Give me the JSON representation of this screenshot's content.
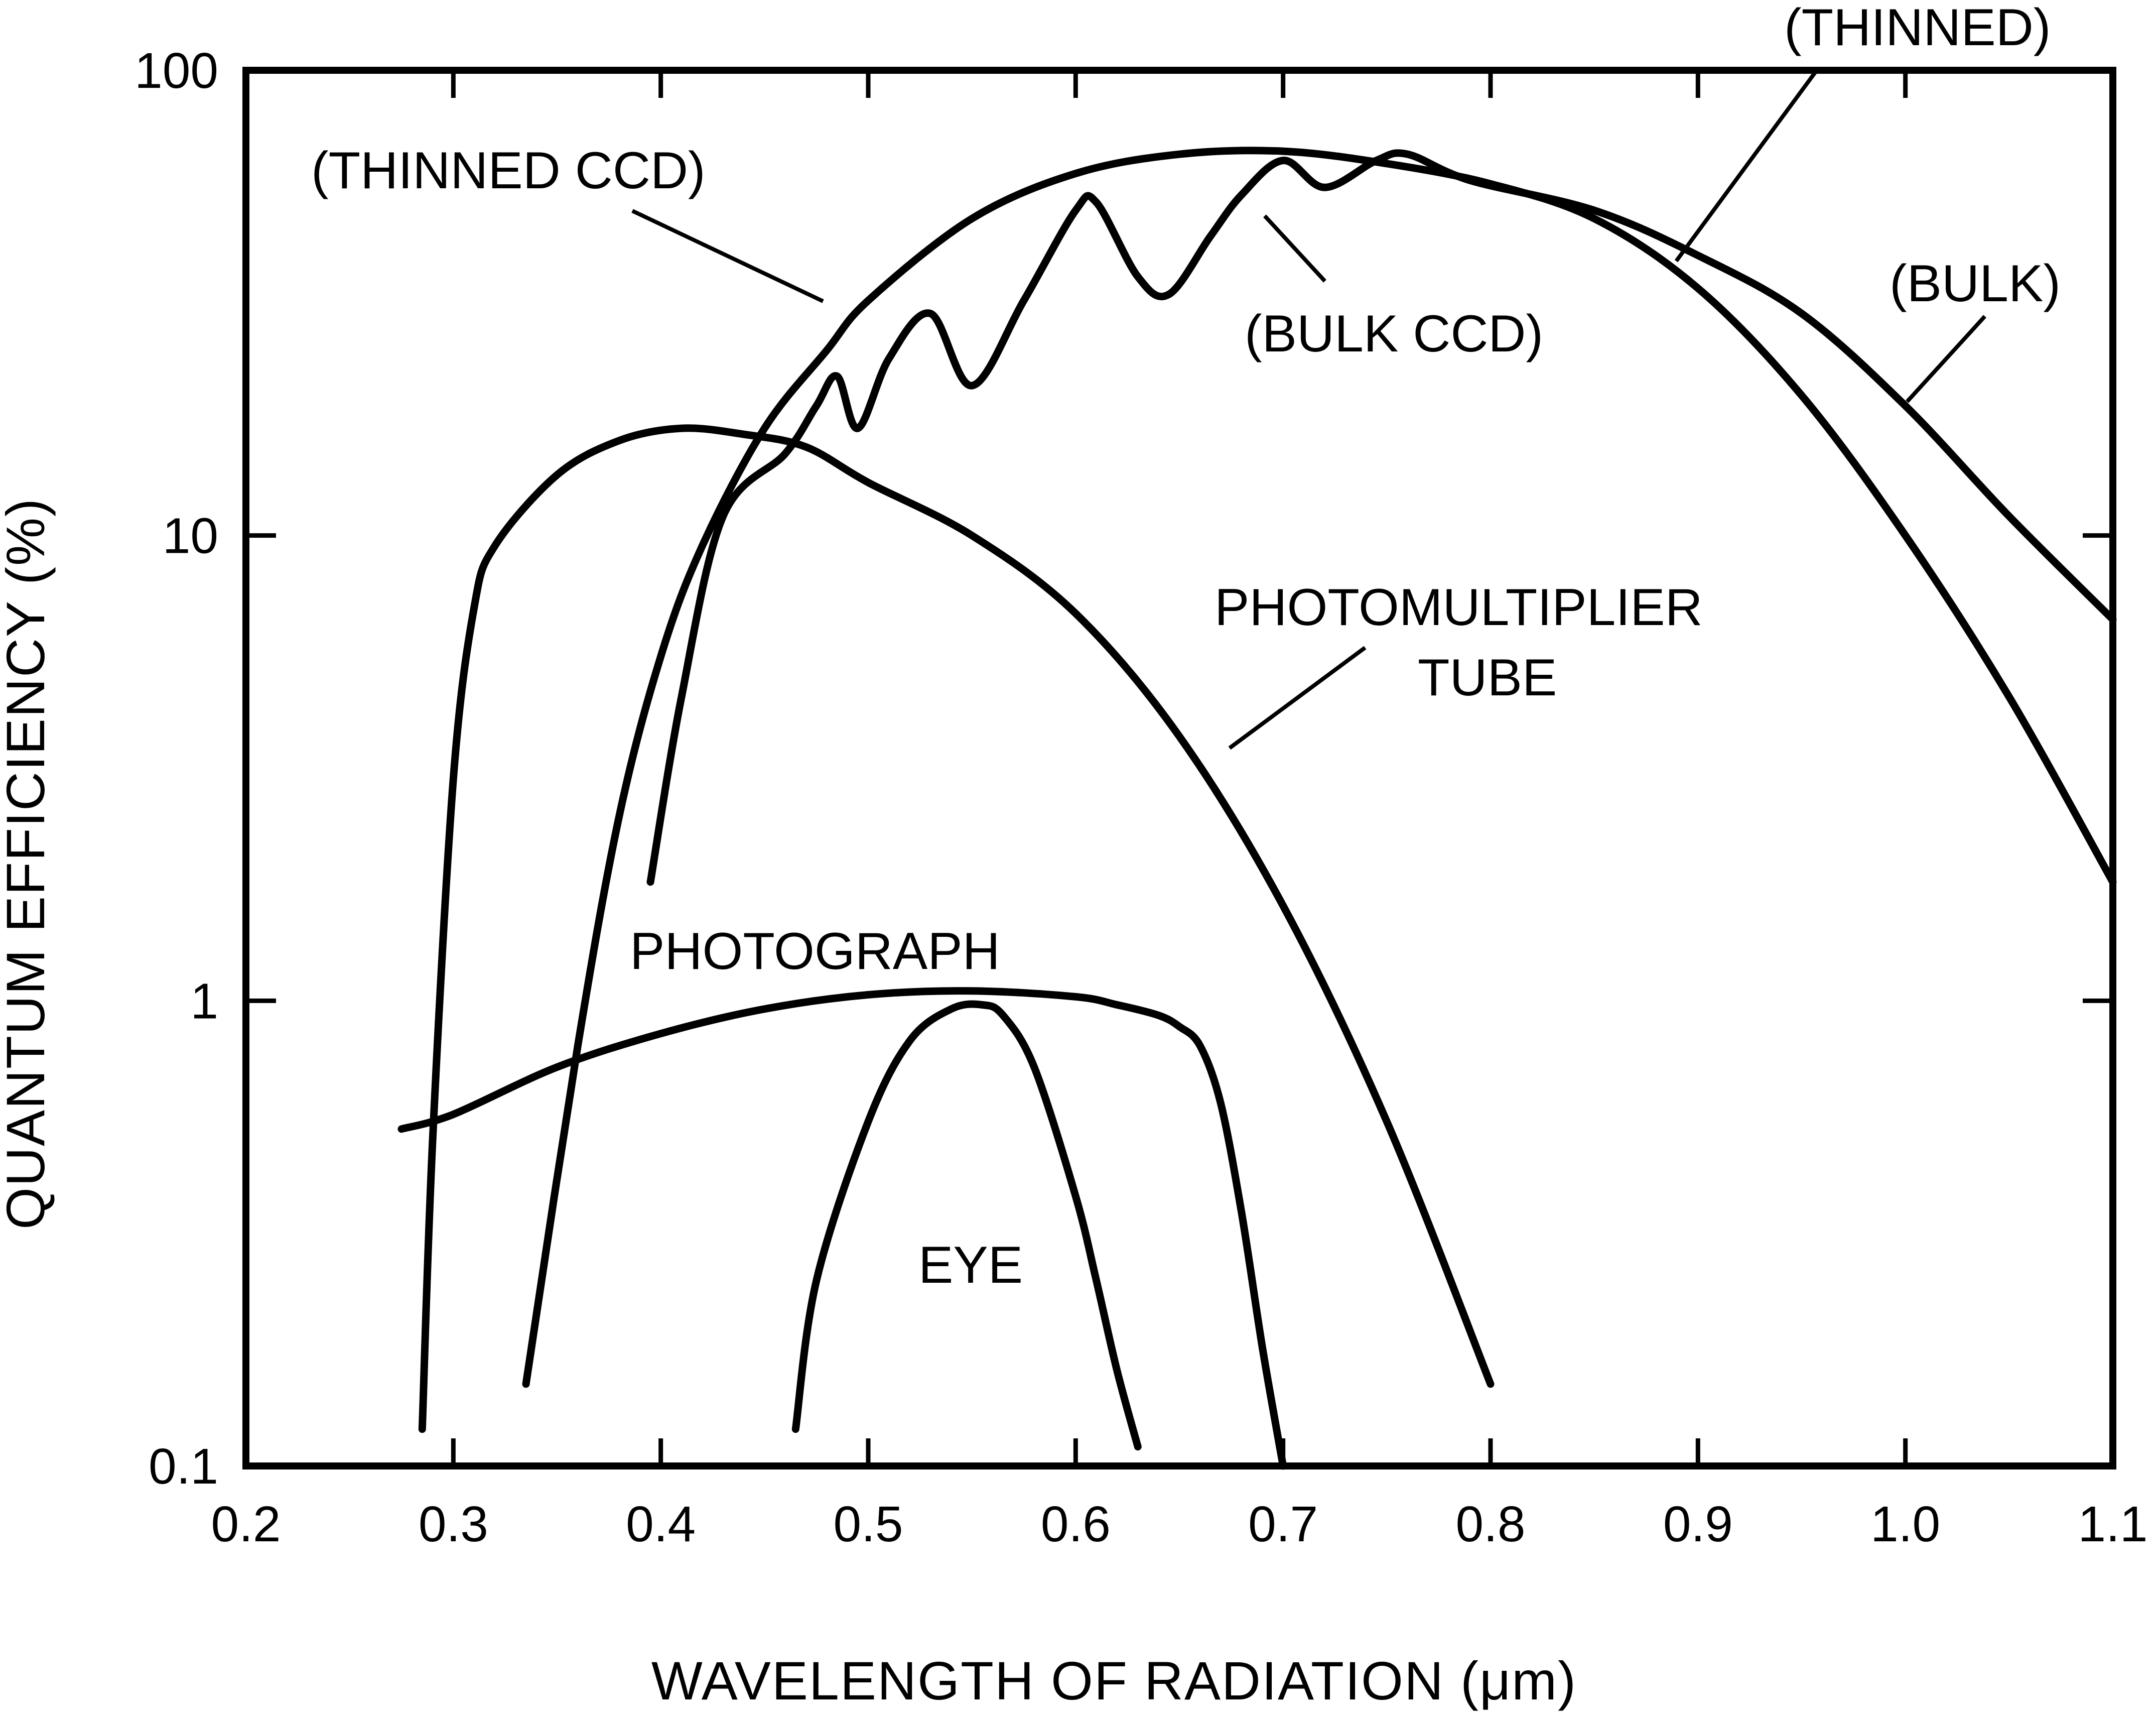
{
  "chart_data": {
    "type": "line",
    "title": "",
    "xlabel": "WAVELENGTH OF RADIATION (μm)",
    "ylabel": "QUANTUM EFFICIENCY (%)",
    "xlim": [
      0.2,
      1.1
    ],
    "ylim": [
      0.1,
      100
    ],
    "y_scale": "log",
    "grid": false,
    "x_ticks": [
      0.2,
      0.3,
      0.4,
      0.5,
      0.6,
      0.7,
      0.8,
      0.9,
      1.0,
      1.1
    ],
    "x_tick_labels": [
      "0.2",
      "0.3",
      "0.4",
      "0.5",
      "0.6",
      "0.7",
      "0.8",
      "0.9",
      "1.0",
      "1.1"
    ],
    "y_ticks": [
      0.1,
      1,
      10,
      100
    ],
    "y_tick_labels": [
      "0.1",
      "1",
      "10",
      "100"
    ],
    "color": "#000000",
    "series": [
      {
        "name": "(THINNED CCD)",
        "x": [
          0.335,
          0.36,
          0.38,
          0.4,
          0.42,
          0.45,
          0.48,
          0.5,
          0.55,
          0.6,
          0.65,
          0.7,
          0.75,
          0.8,
          0.85,
          0.9,
          0.95,
          1.0,
          1.05,
          1.1
        ],
        "y": [
          0.15,
          0.8,
          2.5,
          5.5,
          9.5,
          17,
          25,
          32,
          48,
          60,
          66,
          67,
          63,
          57,
          48,
          34,
          20,
          10,
          4.5,
          1.8
        ]
      },
      {
        "name": "(BULK CCD)",
        "x": [
          0.395,
          0.41,
          0.43,
          0.46,
          0.475,
          0.485,
          0.495,
          0.51,
          0.53,
          0.55,
          0.575,
          0.6,
          0.61,
          0.63,
          0.645,
          0.665,
          0.68,
          0.7,
          0.72,
          0.745,
          0.76,
          0.79,
          0.85,
          0.9,
          0.95,
          1.0,
          1.05,
          1.1
        ],
        "y": [
          1.8,
          4.5,
          11,
          15,
          19,
          22,
          17,
          24,
          30,
          21,
          32,
          50,
          52,
          36,
          33,
          44,
          54,
          64,
          56,
          64,
          66,
          58,
          50,
          40,
          30,
          19,
          11,
          6.6
        ]
      },
      {
        "name": "PHOTOMULTIPLIER TUBE",
        "x": [
          0.285,
          0.29,
          0.3,
          0.31,
          0.32,
          0.35,
          0.38,
          0.41,
          0.44,
          0.47,
          0.5,
          0.55,
          0.6,
          0.65,
          0.7,
          0.75,
          0.8
        ],
        "y": [
          0.12,
          0.5,
          3,
          7,
          9.5,
          13.5,
          16,
          17,
          16.5,
          15.5,
          13,
          10,
          6.8,
          3.7,
          1.6,
          0.55,
          0.15
        ]
      },
      {
        "name": "PHOTOGRAPH",
        "x": [
          0.275,
          0.3,
          0.35,
          0.4,
          0.45,
          0.5,
          0.55,
          0.6,
          0.62,
          0.64,
          0.65,
          0.66,
          0.67,
          0.68,
          0.69,
          0.7
        ],
        "y": [
          0.53,
          0.57,
          0.72,
          0.85,
          0.96,
          1.03,
          1.05,
          1.02,
          0.98,
          0.93,
          0.88,
          0.8,
          0.6,
          0.35,
          0.18,
          0.1
        ]
      },
      {
        "name": "EYE",
        "x": [
          0.465,
          0.475,
          0.5,
          0.52,
          0.54,
          0.555,
          0.565,
          0.58,
          0.6,
          0.61,
          0.62,
          0.63
        ],
        "y": [
          0.12,
          0.25,
          0.55,
          0.82,
          0.96,
          0.98,
          0.93,
          0.72,
          0.38,
          0.25,
          0.16,
          0.11
        ]
      }
    ],
    "annotations": {
      "thinned_ccd": "(THINNED CCD)",
      "bulk_ccd": "(BULK CCD)",
      "thinned": "(THINNED)",
      "bulk": "(BULK)",
      "pmt_line1": "PHOTOMULTIPLIER",
      "pmt_line2": "TUBE",
      "photograph": "PHOTOGRAPH",
      "eye": "EYE"
    }
  }
}
